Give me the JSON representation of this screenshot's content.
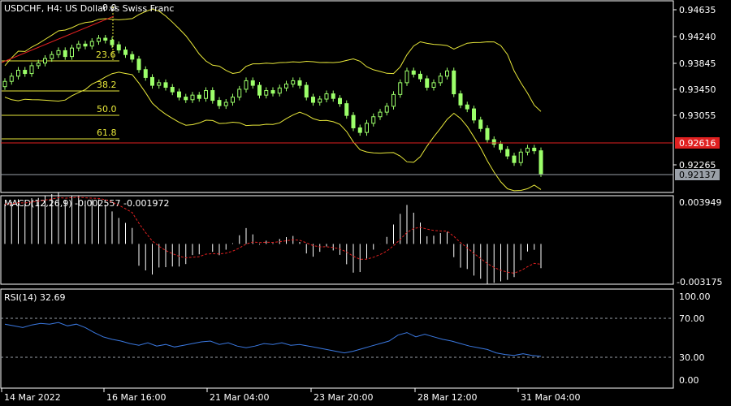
{
  "symbol_title": "USDCHF, H4:  US Dollar vs Swiss Franc",
  "macd_title": "MACD(12,26,9) -0.002557 -0.001972",
  "rsi_title": "RSI(14) 32.69",
  "fib_labels": [
    "23.6",
    "38.2",
    "50.0",
    "61.8",
    "0.0"
  ],
  "price_axis": [
    "0.94635",
    "0.94240",
    "0.93845",
    "0.93450",
    "0.93055",
    "0.92265"
  ],
  "price_tags": {
    "red_line": "0.92616",
    "current": "0.92137"
  },
  "macd_axis": [
    "0.003949",
    "-0.003175"
  ],
  "rsi_axis": [
    "100.00",
    "70.00",
    "30.00",
    "0.00"
  ],
  "time_axis": [
    "14 Mar 2022",
    "16 Mar 16:00",
    "21 Mar 04:00",
    "23 Mar 20:00",
    "28 Mar 12:00",
    "31 Mar 04:00"
  ],
  "colors": {
    "background": "#000000",
    "candle": "#9cff6a",
    "bands": "#e8e83a",
    "red_line": "#e02020",
    "rsi_line": "#3a78e0",
    "macd_bars": "#ffffff",
    "macd_signal": "#e02020",
    "fib_lines": "#e8e83a"
  },
  "chart_data": {
    "type": "line",
    "title": "USDCHF, H4:  US Dollar vs Swiss Franc",
    "candles_close": [
      0.9354,
      0.9362,
      0.9371,
      0.9366,
      0.9378,
      0.9382,
      0.9389,
      0.9395,
      0.9401,
      0.9392,
      0.9405,
      0.9411,
      0.9408,
      0.9415,
      0.942,
      0.9417,
      0.941,
      0.9402,
      0.9395,
      0.9388,
      0.9372,
      0.936,
      0.9348,
      0.9352,
      0.9345,
      0.9338,
      0.933,
      0.9326,
      0.9333,
      0.9328,
      0.934,
      0.9325,
      0.9317,
      0.9322,
      0.933,
      0.9342,
      0.9355,
      0.9348,
      0.9333,
      0.934,
      0.9336,
      0.9344,
      0.935,
      0.9355,
      0.9348,
      0.933,
      0.9322,
      0.9327,
      0.9335,
      0.9328,
      0.932,
      0.9302,
      0.9283,
      0.9276,
      0.929,
      0.93,
      0.9307,
      0.9316,
      0.9334,
      0.9352,
      0.937,
      0.9365,
      0.9358,
      0.9345,
      0.9352,
      0.9362,
      0.937,
      0.9335,
      0.9318,
      0.9312,
      0.9295,
      0.9282,
      0.9265,
      0.9258,
      0.925,
      0.924,
      0.923,
      0.9246,
      0.9252,
      0.9248,
      0.9213
    ],
    "rsi": [
      70,
      68,
      66,
      69,
      71,
      70,
      72,
      68,
      70,
      66,
      60,
      55,
      52,
      50,
      47,
      45,
      48,
      44,
      46,
      43,
      45,
      47,
      49,
      50,
      46,
      48,
      44,
      42,
      44,
      47,
      46,
      48,
      45,
      46,
      44,
      42,
      40,
      38,
      36,
      38,
      41,
      44,
      47,
      50,
      57,
      60,
      55,
      58,
      55,
      52,
      50,
      47,
      44,
      42,
      40,
      36,
      34,
      33,
      35,
      33,
      32
    ],
    "macd_last": -0.002557,
    "signal_last": -0.001972,
    "rsi_last": 32.69
  }
}
